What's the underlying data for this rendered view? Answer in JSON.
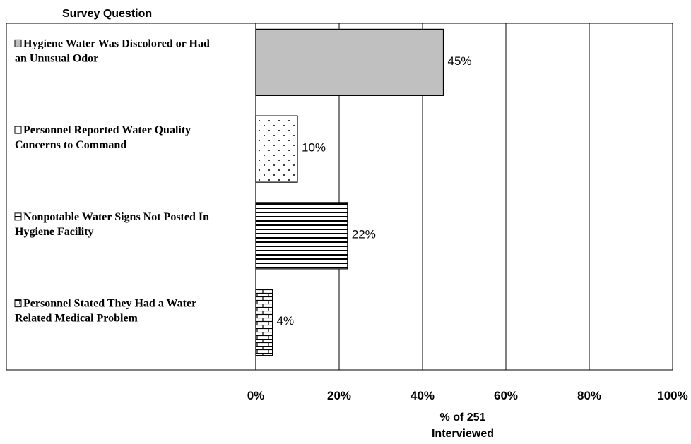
{
  "chart_data": {
    "type": "bar",
    "orientation": "horizontal",
    "y_header": "Survey Question",
    "categories": [
      [
        "Hygiene Water Was Discolored or Had",
        "an Unusual Odor"
      ],
      [
        "Personnel Reported Water Quality",
        "Concerns to Command"
      ],
      [
        "Nonpotable Water Signs Not Posted In",
        "Hygiene Facility"
      ],
      [
        "Personnel Stated They Had a Water",
        "Related Medical Problem"
      ]
    ],
    "values": [
      45,
      10,
      22,
      4
    ],
    "data_labels": [
      "45%",
      "10%",
      "22%",
      "4%"
    ],
    "patterns": [
      "solid-gray",
      "dots",
      "horizontal-lines",
      "bricks"
    ],
    "xlabel": [
      "% of 251",
      "Interviewed"
    ],
    "xlim": [
      0,
      100
    ],
    "xticks": [
      0,
      20,
      40,
      60,
      80,
      100
    ],
    "xtick_labels": [
      "0%",
      "20%",
      "40%",
      "60%",
      "80%",
      "100%"
    ],
    "grid": "vertical",
    "legend": "none"
  }
}
